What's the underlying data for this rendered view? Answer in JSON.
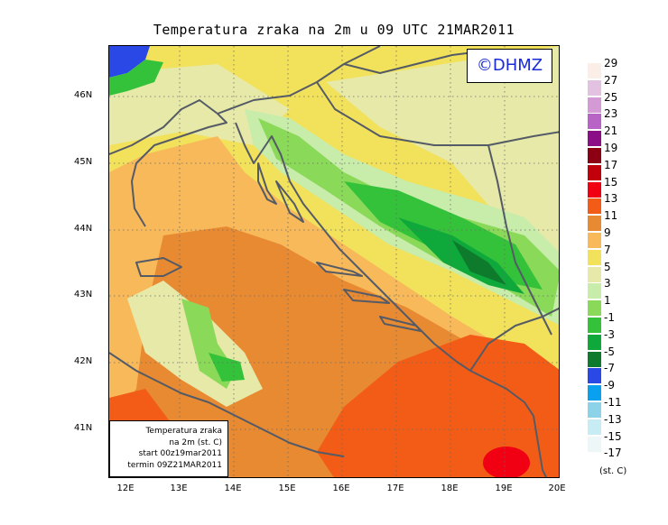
{
  "title": "Temperatura zraka na 2m u 09 UTC 21MAR2011",
  "brand": "©DHMZ",
  "info": {
    "line1": "Temperatura zraka",
    "line2": "na 2m (st. C)",
    "line3": "start 00z19mar2011",
    "line4": "termin 09Z21MAR2011"
  },
  "lat_labels": [
    "46N",
    "45N",
    "44N",
    "43N",
    "42N",
    "41N"
  ],
  "lon_labels": [
    "12E",
    "13E",
    "14E",
    "15E",
    "16E",
    "17E",
    "18E",
    "19E",
    "20E"
  ],
  "legend": {
    "labels": [
      "29",
      "27",
      "25",
      "23",
      "21",
      "19",
      "17",
      "15",
      "13",
      "11",
      "9",
      "7",
      "5",
      "3",
      "1",
      "-1",
      "-3",
      "-5",
      "-7",
      "-9",
      "-11",
      "-13",
      "-15",
      "-17"
    ],
    "unit": "(st. C)",
    "colors": [
      "#fbeee6",
      "#e3c1e1",
      "#d49ad6",
      "#b864c7",
      "#8b0e86",
      "#8d0014",
      "#c0000b",
      "#f00012",
      "#f25c16",
      "#e88a32",
      "#f7b95a",
      "#f2e15a",
      "#e7e9a8",
      "#c8ecaa",
      "#8ad958",
      "#33c23a",
      "#0fa83b",
      "#0e7a2c",
      "#2a48e6",
      "#0aa0f0",
      "#8cd3ea",
      "#c8ecf4",
      "#eef7f8"
    ]
  }
}
